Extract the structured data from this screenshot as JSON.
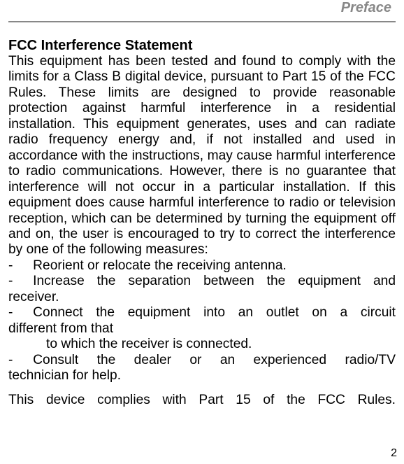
{
  "header": {
    "title": "Preface"
  },
  "heading": "FCC Interference Statement",
  "paragraph": "This equipment has been tested and found to comply with the limits for a Class B digital device, pursuant to Part 15 of the FCC Rules.  These limits are designed to provide reasonable protection against harmful interference in a residential installation.  This equipment generates, uses and can radiate radio frequency energy and, if not installed and used in accordance with the instructions, may cause harmful interference to radio communications.  However, there is no guarantee that interference will not occur in a particular installation.  If this equipment does cause harmful interference to radio or television reception, which can be determined by turning the equipment off and on, the user is encouraged to try to correct the interference by one of the following measures:",
  "bullets": {
    "b1": "-  Reorient or relocate the receiving antenna.",
    "b2a": "-  Increase the separation between the equipment and",
    "b2b": "receiver.",
    "b3a": "-  Connect the equipment into an outlet on a circuit",
    "b3b": "different from that",
    "b3c": "to which the receiver is connected.",
    "b4a": "-  Consult the dealer or an experienced radio/TV",
    "b4b": "technician for help."
  },
  "closing": "This device complies with Part 15 of the FCC Rules.",
  "pageNumber": "2",
  "styles": {
    "header_color": "#888888",
    "text_color": "#000000",
    "background": "#ffffff"
  }
}
